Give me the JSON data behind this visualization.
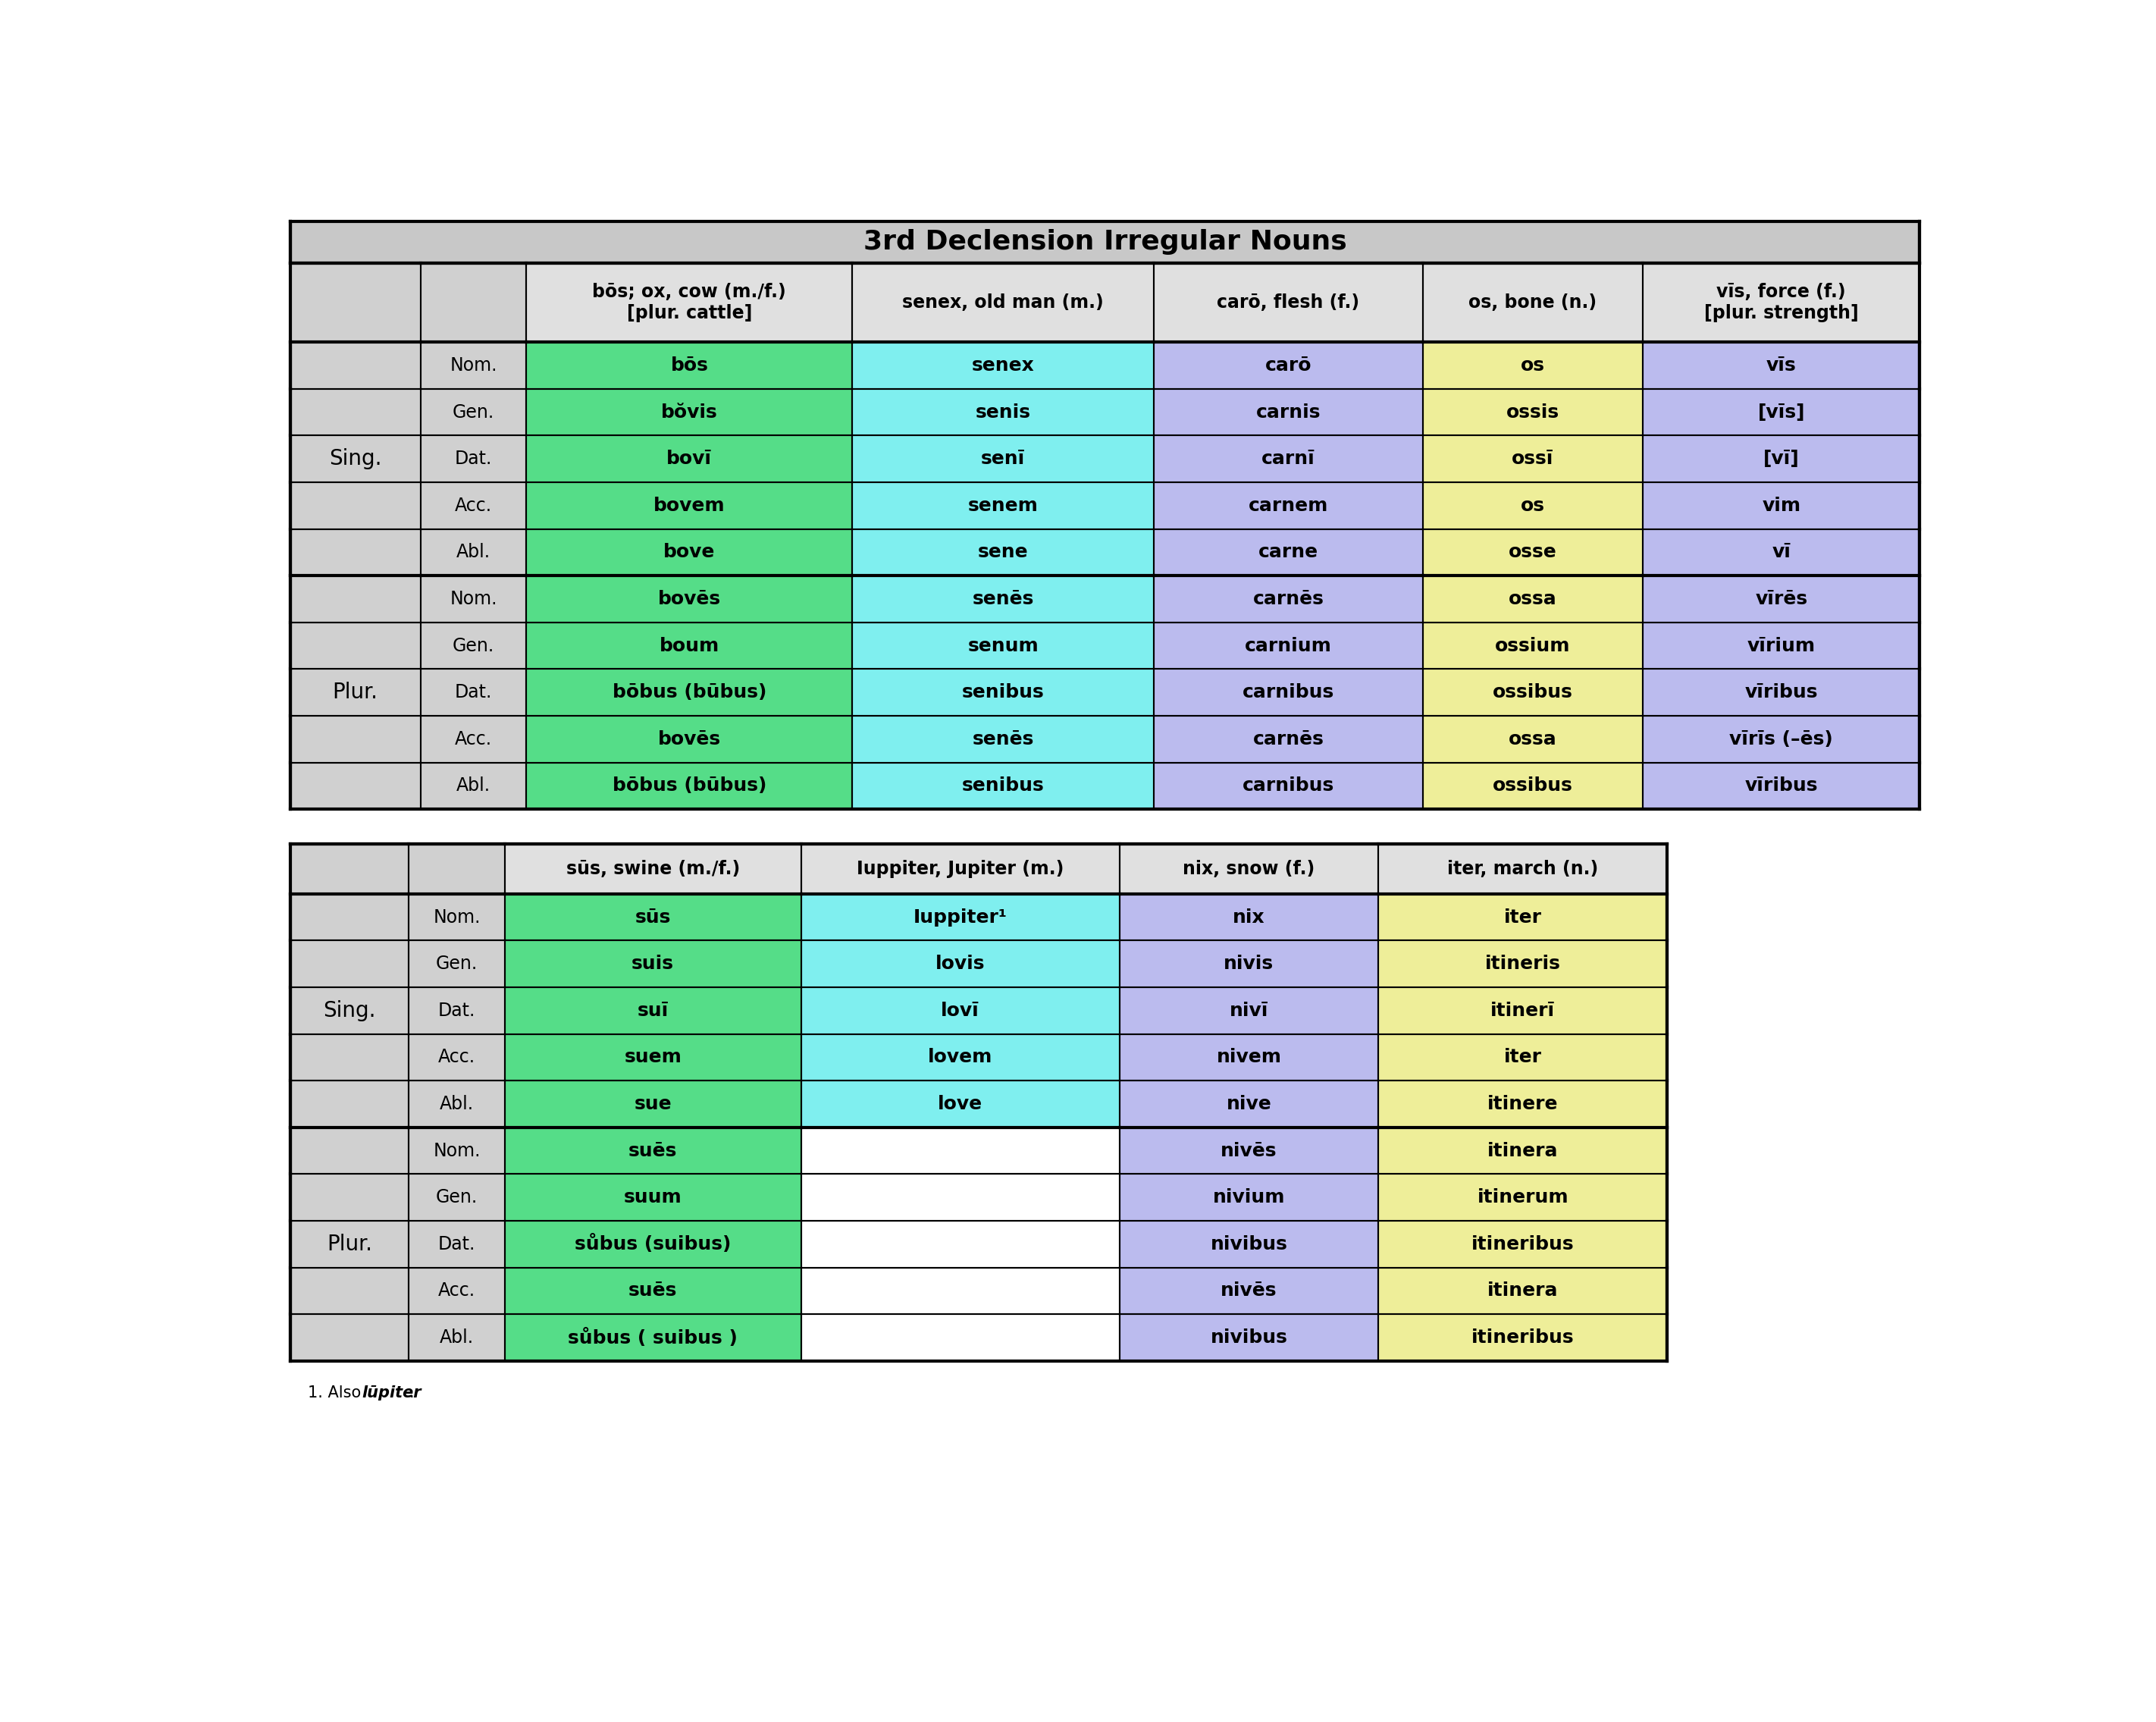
{
  "title": "3rd Declension Irregular Nouns",
  "title_bg": "#c8c8c8",
  "header_bg": "#e0e0e0",
  "label_bg": "#d0d0d0",
  "green": "#55dd88",
  "cyan": "#7fefef",
  "purple": "#bbbbee",
  "yellow": "#eeee99",
  "white": "#ffffff",
  "t1_col_headers": [
    "bōs; ox, cow (m./f.)\n[plur. cattle]",
    "senex, old man (m.)",
    "carō, flesh (f.)",
    "os, bone (n.)",
    "vīs, force (f.)\n[plur. strength]"
  ],
  "t1_data": [
    [
      "Nom.",
      "bōs",
      "senex",
      "carō",
      "os",
      "vīs"
    ],
    [
      "Gen.",
      "bŏvis",
      "senis",
      "carnis",
      "ossis",
      "[vīs]"
    ],
    [
      "Dat.",
      "bovī",
      "senī",
      "carnī",
      "ossī",
      "[vī]"
    ],
    [
      "Acc.",
      "bovem",
      "senem",
      "carnem",
      "os",
      "vim"
    ],
    [
      "Abl.",
      "bove",
      "sene",
      "carne",
      "osse",
      "vī"
    ],
    [
      "Nom.",
      "bovēs",
      "senēs",
      "carnēs",
      "ossa",
      "vīrēs"
    ],
    [
      "Gen.",
      "boum",
      "senum",
      "carnium",
      "ossium",
      "vīrium"
    ],
    [
      "Dat.",
      "bōbus (būbus)",
      "senibus",
      "carnibus",
      "ossibus",
      "vīribus"
    ],
    [
      "Acc.",
      "bovēs",
      "senēs",
      "carnēs",
      "ossa",
      "vīrīs (–ēs)"
    ],
    [
      "Abl.",
      "bōbus (būbus)",
      "senibus",
      "carnibus",
      "ossibus",
      "vīribus"
    ]
  ],
  "t1_colors": [
    [
      "#55dd88",
      "#7fefef",
      "#bbbbee",
      "#eeee99",
      "#bbbbee"
    ],
    [
      "#55dd88",
      "#7fefef",
      "#bbbbee",
      "#eeee99",
      "#bbbbee"
    ],
    [
      "#55dd88",
      "#7fefef",
      "#bbbbee",
      "#eeee99",
      "#bbbbee"
    ],
    [
      "#55dd88",
      "#7fefef",
      "#bbbbee",
      "#eeee99",
      "#bbbbee"
    ],
    [
      "#55dd88",
      "#7fefef",
      "#bbbbee",
      "#eeee99",
      "#bbbbee"
    ],
    [
      "#55dd88",
      "#7fefef",
      "#bbbbee",
      "#eeee99",
      "#bbbbee"
    ],
    [
      "#55dd88",
      "#7fefef",
      "#bbbbee",
      "#eeee99",
      "#bbbbee"
    ],
    [
      "#55dd88",
      "#7fefef",
      "#bbbbee",
      "#eeee99",
      "#bbbbee"
    ],
    [
      "#55dd88",
      "#7fefef",
      "#bbbbee",
      "#eeee99",
      "#bbbbee"
    ],
    [
      "#55dd88",
      "#7fefef",
      "#bbbbee",
      "#eeee99",
      "#bbbbee"
    ]
  ],
  "t2_col_headers": [
    "sūs, swine (m./f.)",
    "Iuppiter, Jupiter (m.)",
    "nix, snow (f.)",
    "iter, march (n.)"
  ],
  "t2_data": [
    [
      "Nom.",
      "sūs",
      "Iuppiter¹",
      "nix",
      "iter"
    ],
    [
      "Gen.",
      "suis",
      "lovis",
      "nivis",
      "itineris"
    ],
    [
      "Dat.",
      "suī",
      "lovī",
      "nivī",
      "itinerī"
    ],
    [
      "Acc.",
      "suem",
      "lovem",
      "nivem",
      "iter"
    ],
    [
      "Abl.",
      "sue",
      "love",
      "nive",
      "itinere"
    ],
    [
      "Nom.",
      "suēs",
      "",
      "nivēs",
      "itinera"
    ],
    [
      "Gen.",
      "suum",
      "",
      "nivium",
      "itinerum"
    ],
    [
      "Dat.",
      "sůbus (suibus)",
      "",
      "nivibus",
      "itineribus"
    ],
    [
      "Acc.",
      "suēs",
      "",
      "nivēs",
      "itinera"
    ],
    [
      "Abl.",
      "sůbus ( suibus )",
      "",
      "nivibus",
      "itineribus"
    ]
  ],
  "t2_colors": [
    [
      "#55dd88",
      "#7fefef",
      "#bbbbee",
      "#eeee99"
    ],
    [
      "#55dd88",
      "#7fefef",
      "#bbbbee",
      "#eeee99"
    ],
    [
      "#55dd88",
      "#7fefef",
      "#bbbbee",
      "#eeee99"
    ],
    [
      "#55dd88",
      "#7fefef",
      "#bbbbee",
      "#eeee99"
    ],
    [
      "#55dd88",
      "#7fefef",
      "#bbbbee",
      "#eeee99"
    ],
    [
      "#55dd88",
      "#ffffff",
      "#bbbbee",
      "#eeee99"
    ],
    [
      "#55dd88",
      "#ffffff",
      "#bbbbee",
      "#eeee99"
    ],
    [
      "#55dd88",
      "#ffffff",
      "#bbbbee",
      "#eeee99"
    ],
    [
      "#55dd88",
      "#ffffff",
      "#bbbbee",
      "#eeee99"
    ],
    [
      "#55dd88",
      "#ffffff",
      "#bbbbee",
      "#eeee99"
    ]
  ],
  "footnote_prefix": "1. Also ",
  "footnote_bold_italic": "lūpiter",
  "footnote_suffix": "."
}
